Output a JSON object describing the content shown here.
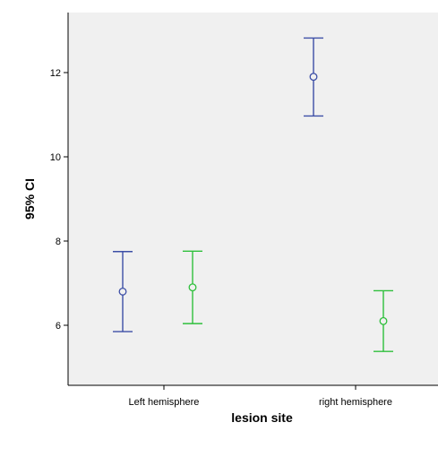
{
  "chart_data": {
    "type": "error-bar",
    "title": "",
    "xlabel": "lesion site",
    "ylabel": "95% CI",
    "categories": [
      "Left hemisphere",
      "right hemisphere"
    ],
    "ylim": [
      4.6,
      13.6
    ],
    "yticks": [
      6,
      8,
      10,
      12
    ],
    "grid": false,
    "legend": "none",
    "series": [
      {
        "color": "#3c4ea6",
        "points": [
          {
            "category": "Left hemisphere",
            "mean": 6.8,
            "lower": 5.85,
            "upper": 7.75
          },
          {
            "category": "right hemisphere",
            "mean": 11.9,
            "lower": 10.97,
            "upper": 12.82
          }
        ]
      },
      {
        "color": "#2fbf3c",
        "points": [
          {
            "category": "Left hemisphere",
            "mean": 6.9,
            "lower": 6.04,
            "upper": 7.76
          },
          {
            "category": "right hemisphere",
            "mean": 6.1,
            "lower": 5.38,
            "upper": 6.82
          }
        ]
      }
    ],
    "plot_background": "#f0f0f0"
  }
}
